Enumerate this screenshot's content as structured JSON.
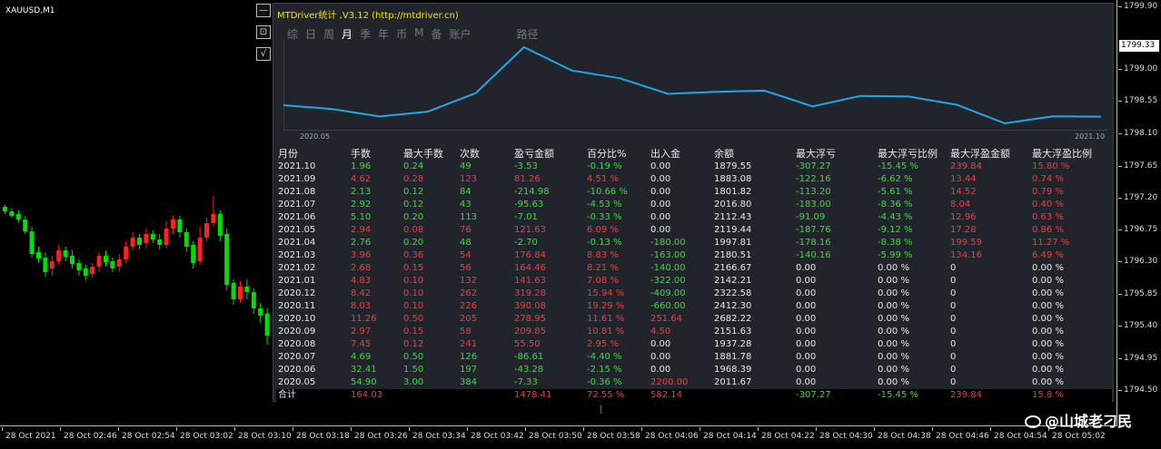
{
  "chart": {
    "symbol": "XAUUSD,M1",
    "btn_minimize": "—",
    "btn_restore": "⊡",
    "btn_check": "√",
    "current_price": "1799.33",
    "price_ticks": [
      "1799.90",
      "1799.33",
      "1799.00",
      "1798.55",
      "1798.10",
      "1797.65",
      "1797.20",
      "1796.75",
      "1796.30",
      "1795.85",
      "1795.40",
      "1794.95",
      "1794.50"
    ],
    "time_ticks": [
      "28 Oct 2021",
      "28 Oct 02:46",
      "28 Oct 02:54",
      "28 Oct 03:02",
      "28 Oct 03:10",
      "28 Oct 03:18",
      "28 Oct 03:26",
      "28 Oct 03:34",
      "28 Oct 03:42",
      "28 Oct 03:50",
      "28 Oct 03:58",
      "28 Oct 04:06",
      "28 Oct 04:14",
      "28 Oct 04:22",
      "28 Oct 04:30",
      "28 Oct 04:38",
      "28 Oct 04:46",
      "28 Oct 04:54",
      "28 Oct 05:02"
    ],
    "colors": {
      "bull": "#00e000",
      "bear": "#ff2020",
      "background": "#000000"
    }
  },
  "panel": {
    "title": "MTDriver统计 ,V3.12 (http://mtdriver.cn)",
    "tabs": [
      "综",
      "日",
      "周",
      "月",
      "季",
      "年",
      "币",
      "M",
      "备",
      "账户",
      "路径"
    ],
    "active_tab": "月",
    "equity": {
      "start_label": "2020.05",
      "end_label": "2021.10",
      "color": "#21a7e6",
      "values": [
        2011.67,
        1968.39,
        1881.78,
        1937.28,
        2151.63,
        2682.22,
        2412.3,
        2322.58,
        2142.21,
        2166.67,
        2180.51,
        1997.81,
        2119.44,
        2112.43,
        2016.8,
        1801.82,
        1883.08,
        1879.55
      ]
    },
    "table": {
      "headers": [
        "月份",
        "手数",
        "最大手数",
        "次数",
        "盈亏金额",
        "百分比%",
        "出入金",
        "余额",
        "最大浮亏",
        "最大浮亏比例",
        "最大浮盈金额",
        "最大浮盈比例"
      ],
      "rows": [
        {
          "c": [
            "2021.10",
            "1.96",
            "0.24",
            "49",
            "-3.53",
            "-0.19 %",
            "0.00",
            "1879.55",
            "-307.27",
            "-15.45 %",
            "239.84",
            "15.80 %"
          ],
          "s": [
            "w",
            "g",
            "g",
            "g",
            "g",
            "g",
            "w",
            "w",
            "g",
            "g",
            "r",
            "r"
          ]
        },
        {
          "c": [
            "2021.09",
            "4.62",
            "0.28",
            "123",
            "81.26",
            "4.51 %",
            "0.00",
            "1883.08",
            "-122.16",
            "-6.62 %",
            "13.44",
            "0.74 %"
          ],
          "s": [
            "w",
            "r",
            "r",
            "r",
            "r",
            "r",
            "w",
            "w",
            "g",
            "g",
            "r",
            "r"
          ]
        },
        {
          "c": [
            "2021.08",
            "2.13",
            "0.12",
            "84",
            "-214.98",
            "-10.66 %",
            "0.00",
            "1801.82",
            "-113.20",
            "-5.61 %",
            "14.52",
            "0.79 %"
          ],
          "s": [
            "w",
            "g",
            "g",
            "g",
            "g",
            "g",
            "w",
            "w",
            "g",
            "g",
            "r",
            "r"
          ]
        },
        {
          "c": [
            "2021.07",
            "2.92",
            "0.12",
            "43",
            "-95.63",
            "-4.53 %",
            "0.00",
            "2016.80",
            "-183.00",
            "-8.36 %",
            "8.04",
            "0.40 %"
          ],
          "s": [
            "w",
            "g",
            "g",
            "g",
            "g",
            "g",
            "w",
            "w",
            "g",
            "g",
            "r",
            "r"
          ]
        },
        {
          "c": [
            "2021.06",
            "5.10",
            "0.20",
            "113",
            "-7.01",
            "-0.33 %",
            "0.00",
            "2112.43",
            "-91.09",
            "-4.43 %",
            "12.96",
            "0.63 %"
          ],
          "s": [
            "w",
            "g",
            "g",
            "g",
            "g",
            "g",
            "w",
            "w",
            "g",
            "g",
            "r",
            "r"
          ]
        },
        {
          "c": [
            "2021.05",
            "2.94",
            "0.08",
            "76",
            "121.63",
            "6.09 %",
            "0.00",
            "2119.44",
            "-187.76",
            "-9.12 %",
            "17.28",
            "0.86 %"
          ],
          "s": [
            "w",
            "r",
            "r",
            "r",
            "r",
            "r",
            "w",
            "w",
            "g",
            "g",
            "r",
            "r"
          ]
        },
        {
          "c": [
            "2021.04",
            "2.76",
            "0.20",
            "48",
            "-2.70",
            "-0.13 %",
            "-180.00",
            "1997.81",
            "-178.16",
            "-8.38 %",
            "199.59",
            "11.27 %"
          ],
          "s": [
            "w",
            "g",
            "g",
            "g",
            "g",
            "g",
            "g",
            "w",
            "g",
            "g",
            "r",
            "r"
          ]
        },
        {
          "c": [
            "2021.03",
            "3.96",
            "0.36",
            "54",
            "176.84",
            "8.83 %",
            "-163.00",
            "2180.51",
            "-140.16",
            "-5.99 %",
            "134.16",
            "6.49 %"
          ],
          "s": [
            "w",
            "r",
            "r",
            "r",
            "r",
            "r",
            "g",
            "w",
            "g",
            "g",
            "r",
            "r"
          ]
        },
        {
          "c": [
            "2021.02",
            "2.68",
            "0.15",
            "56",
            "164.46",
            "8.21 %",
            "-140.00",
            "2166.67",
            "0.00",
            "0.00 %",
            "0",
            "0.00 %"
          ],
          "s": [
            "w",
            "r",
            "r",
            "r",
            "r",
            "r",
            "g",
            "w",
            "w",
            "w",
            "w",
            "w"
          ]
        },
        {
          "c": [
            "2021.01",
            "4.83",
            "0.10",
            "132",
            "141.63",
            "7.08 %",
            "-322.00",
            "2142.21",
            "0.00",
            "0.00 %",
            "0",
            "0.00 %"
          ],
          "s": [
            "w",
            "r",
            "r",
            "r",
            "r",
            "r",
            "g",
            "w",
            "w",
            "w",
            "w",
            "w"
          ]
        },
        {
          "c": [
            "2020.12",
            "8.42",
            "0.10",
            "262",
            "319.28",
            "15.94 %",
            "-409.00",
            "2322.58",
            "0.00",
            "0.00 %",
            "0",
            "0.00 %"
          ],
          "s": [
            "w",
            "r",
            "r",
            "r",
            "r",
            "r",
            "g",
            "w",
            "w",
            "w",
            "w",
            "w"
          ]
        },
        {
          "c": [
            "2020.11",
            "8.03",
            "0.10",
            "226",
            "390.08",
            "19.29 %",
            "-660.00",
            "2412.30",
            "0.00",
            "0.00 %",
            "0",
            "0.00 %"
          ],
          "s": [
            "w",
            "r",
            "r",
            "r",
            "r",
            "r",
            "g",
            "w",
            "w",
            "w",
            "w",
            "w"
          ]
        },
        {
          "c": [
            "2020.10",
            "11.26",
            "0.50",
            "205",
            "278.95",
            "11.61 %",
            "251.64",
            "2682.22",
            "0.00",
            "0.00 %",
            "0",
            "0.00 %"
          ],
          "s": [
            "w",
            "r",
            "r",
            "r",
            "r",
            "r",
            "r",
            "w",
            "w",
            "w",
            "w",
            "w"
          ]
        },
        {
          "c": [
            "2020.09",
            "2.97",
            "0.15",
            "58",
            "209.85",
            "10.81 %",
            "4.50",
            "2151.63",
            "0.00",
            "0.00 %",
            "0",
            "0.00 %"
          ],
          "s": [
            "w",
            "r",
            "r",
            "r",
            "r",
            "r",
            "r",
            "w",
            "w",
            "w",
            "w",
            "w"
          ]
        },
        {
          "c": [
            "2020.08",
            "7.45",
            "0.12",
            "241",
            "55.50",
            "2.95 %",
            "0.00",
            "1937.28",
            "0.00",
            "0.00 %",
            "0",
            "0.00 %"
          ],
          "s": [
            "w",
            "r",
            "r",
            "r",
            "r",
            "r",
            "w",
            "w",
            "w",
            "w",
            "w",
            "w"
          ]
        },
        {
          "c": [
            "2020.07",
            "4.69",
            "0.50",
            "126",
            "-86.61",
            "-4.40 %",
            "0.00",
            "1881.78",
            "0.00",
            "0.00 %",
            "0",
            "0.00 %"
          ],
          "s": [
            "w",
            "g",
            "g",
            "g",
            "g",
            "g",
            "w",
            "w",
            "w",
            "w",
            "w",
            "w"
          ]
        },
        {
          "c": [
            "2020.06",
            "32.41",
            "1.50",
            "197",
            "-43.28",
            "-2.15 %",
            "0.00",
            "1968.39",
            "0.00",
            "0.00 %",
            "0",
            "0.00 %"
          ],
          "s": [
            "w",
            "g",
            "g",
            "g",
            "g",
            "g",
            "w",
            "w",
            "w",
            "w",
            "w",
            "w"
          ]
        },
        {
          "c": [
            "2020.05",
            "54.90",
            "3.00",
            "384",
            "-7.33",
            "-0.36 %",
            "2200.00",
            "2011.67",
            "0.00",
            "0.00 %",
            "0",
            "0.00 %"
          ],
          "s": [
            "w",
            "g",
            "g",
            "g",
            "g",
            "g",
            "r",
            "w",
            "w",
            "w",
            "w",
            "w"
          ]
        }
      ],
      "total": {
        "c": [
          "合计",
          "164.03",
          "",
          "",
          "1478.41",
          "72.55 %",
          "582.14",
          "",
          "-307.27",
          "-15.45 %",
          "239.84",
          "15.8 %"
        ],
        "s": [
          "w",
          "r",
          "r",
          "r",
          "r",
          "r",
          "r",
          "w",
          "g",
          "g",
          "r",
          "r"
        ]
      }
    }
  },
  "watermark": "@山城老刁民"
}
